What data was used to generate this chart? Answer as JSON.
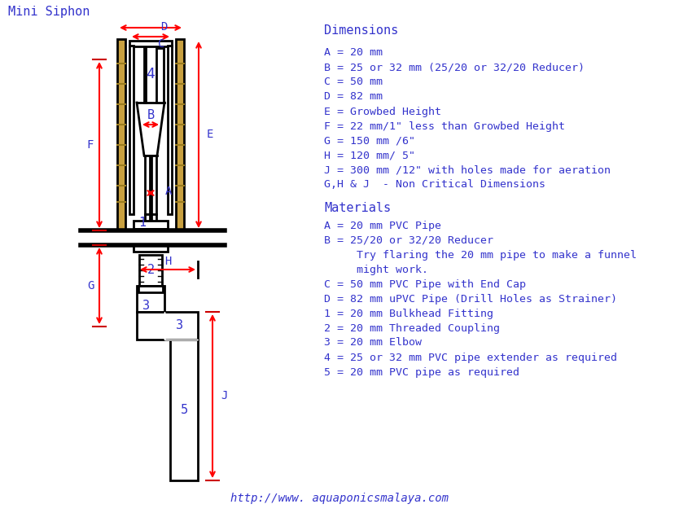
{
  "title": "Mini Siphon",
  "bg_color": "#ffffff",
  "text_color": "#3333cc",
  "draw_color": "#000000",
  "arrow_color": "#cc0000",
  "tan_color": "#c8a040",
  "dimensions_title": "Dimensions",
  "dimensions_lines": [
    "A = 20 mm",
    "B = 25 or 32 mm (25/20 or 32/20 Reducer)",
    "C = 50 mm",
    "D = 82 mm",
    "E = Growbed Height",
    "F = 22 mm/1\" less than Growbed Height",
    "G = 150 mm /6\"",
    "H = 120 mm/ 5\"",
    "J = 300 mm /12\" with holes made for aeration",
    "G,H & J  - Non Critical Dimensions"
  ],
  "materials_title": "Materials",
  "materials_lines": [
    "A = 20 mm PVC Pipe",
    "B = 25/20 or 32/20 Reducer",
    "     Try flaring the 20 mm pipe to make a funnel",
    "     might work.",
    "C = 50 mm PVC Pipe with End Cap",
    "D = 82 mm uPVC Pipe (Drill Holes as Strainer)",
    "1 = 20 mm Bulkhead Fitting",
    "2 = 20 mm Threaded Coupling",
    "3 = 20 mm Elbow",
    "4 = 25 or 32 mm PVC pipe extender as required",
    "5 = 20 mm PVC pipe as required"
  ],
  "footer": "http://www. aquaponicsmalaya.com"
}
